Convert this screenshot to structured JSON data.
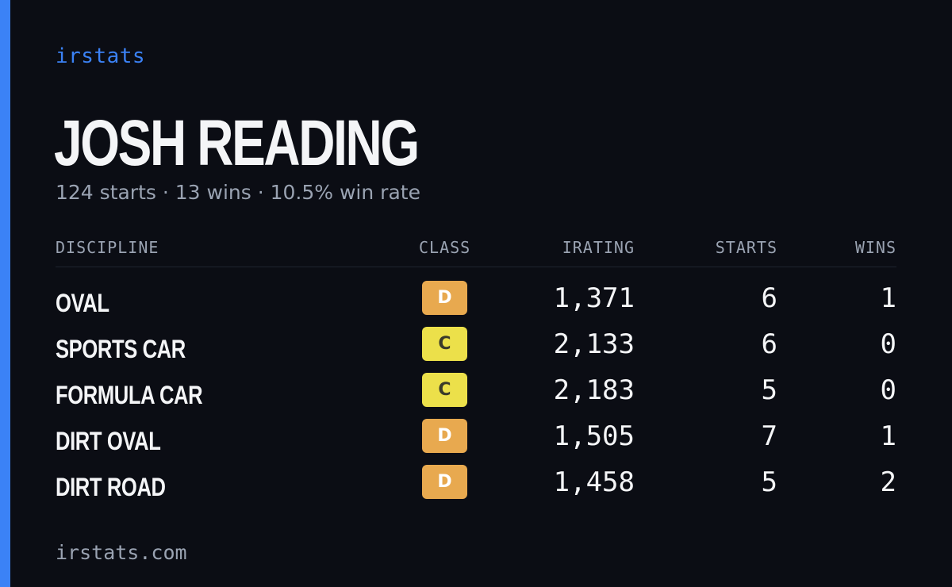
{
  "brand": "irstats",
  "driver": {
    "name": "JOSH READING",
    "summary": "124 starts · 13 wins · 10.5% win rate"
  },
  "table": {
    "headers": {
      "discipline": "DISCIPLINE",
      "class": "CLASS",
      "irating": "IRATING",
      "starts": "STARTS",
      "wins": "WINS"
    },
    "rows": [
      {
        "discipline": "OVAL",
        "class": "D",
        "irating": "1,371",
        "starts": "6",
        "wins": "1"
      },
      {
        "discipline": "SPORTS CAR",
        "class": "C",
        "irating": "2,133",
        "starts": "6",
        "wins": "0"
      },
      {
        "discipline": "FORMULA CAR",
        "class": "C",
        "irating": "2,183",
        "starts": "5",
        "wins": "0"
      },
      {
        "discipline": "DIRT OVAL",
        "class": "D",
        "irating": "1,505",
        "starts": "7",
        "wins": "1"
      },
      {
        "discipline": "DIRT ROAD",
        "class": "D",
        "irating": "1,458",
        "starts": "5",
        "wins": "2"
      }
    ]
  },
  "class_colors": {
    "D": {
      "bg": "#e8a94f",
      "fg": "#ffffff"
    },
    "C": {
      "bg": "#ece04a",
      "fg": "#3a3a2a"
    }
  },
  "colors": {
    "accent": "#3b82f6",
    "background": "#0b0d14",
    "muted": "#9aa3b2",
    "text": "#f4f5f7"
  },
  "footer": "irstats.com"
}
